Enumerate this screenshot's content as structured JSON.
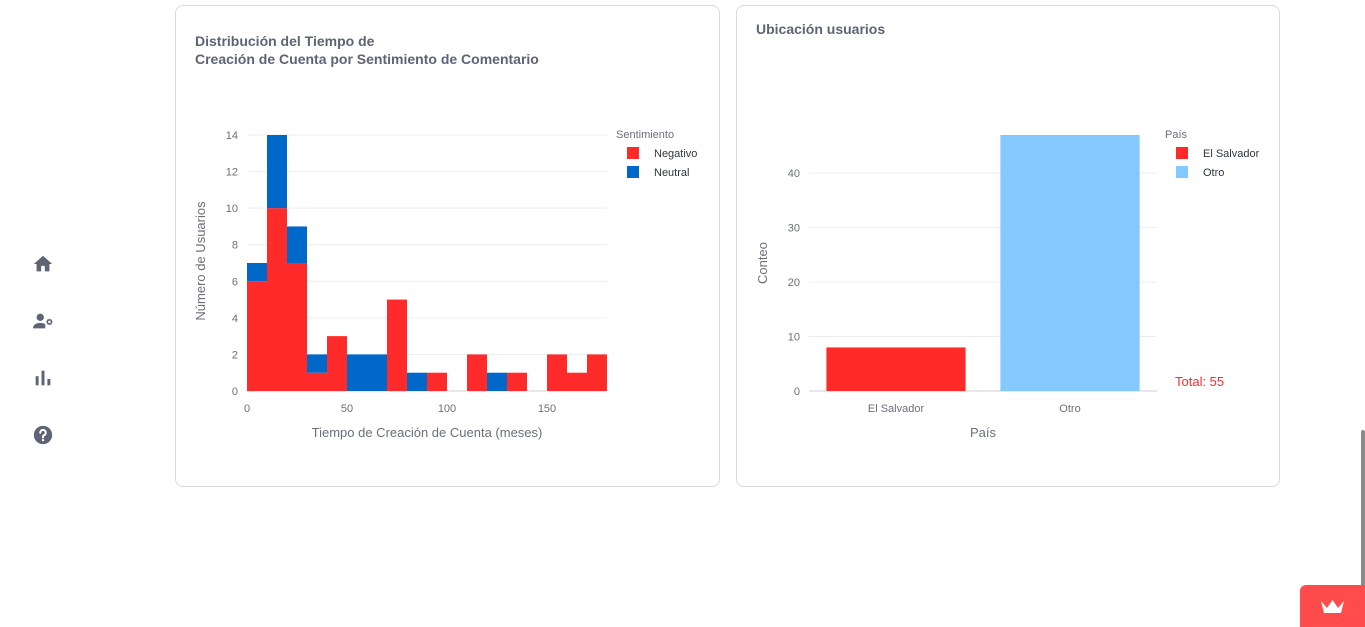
{
  "nav": {
    "items": [
      {
        "icon": "home-icon"
      },
      {
        "icon": "users-settings-icon"
      },
      {
        "icon": "bar-chart-icon"
      },
      {
        "icon": "help-icon"
      }
    ]
  },
  "charts": {
    "left": {
      "title": "Distribución del Tiempo de\nCreación de Cuenta por Sentimiento de Comentario"
    },
    "right": {
      "title": "Ubicación usuarios",
      "total_label": "Total: 55"
    }
  },
  "chart_data": [
    {
      "type": "bar",
      "stacked": true,
      "title": "Distribución del Tiempo de Creación de Cuenta por Sentimiento de Comentario",
      "xlabel": "Tiempo de Creación de Cuenta (meses)",
      "ylabel": "Número de Usuarios",
      "bin_starts": [
        0,
        10,
        20,
        30,
        40,
        50,
        60,
        70,
        80,
        90,
        100,
        110,
        120,
        130,
        140,
        150,
        160,
        170
      ],
      "bin_width": 10,
      "xlim": [
        0,
        180
      ],
      "ylim": [
        0,
        14
      ],
      "xticks": [
        0,
        50,
        100,
        150
      ],
      "yticks": [
        0,
        2,
        4,
        6,
        8,
        10,
        12,
        14
      ],
      "legend_title": "Sentimiento",
      "legend_position": "top-right",
      "grid": true,
      "series": [
        {
          "name": "Negativo",
          "color": "#ff2b2b",
          "values": [
            6,
            10,
            7,
            1,
            3,
            0,
            0,
            5,
            0,
            1,
            0,
            2,
            0,
            1,
            0,
            2,
            1,
            2
          ]
        },
        {
          "name": "Neutral",
          "color": "#0068c9",
          "values": [
            1,
            4,
            2,
            1,
            0,
            2,
            2,
            0,
            1,
            0,
            0,
            0,
            1,
            0,
            0,
            0,
            0,
            0
          ]
        }
      ]
    },
    {
      "type": "bar",
      "title": "Ubicación usuarios",
      "xlabel": "País",
      "ylabel": "Conteo",
      "categories": [
        "El Salvador",
        "Otro"
      ],
      "values": [
        8,
        47
      ],
      "colors": [
        "#ff2b2b",
        "#83c9ff"
      ],
      "ylim": [
        0,
        47
      ],
      "yticks": [
        0,
        10,
        20,
        30,
        40
      ],
      "legend_title": "País",
      "legend_position": "top-right",
      "grid": true,
      "annotation": "Total: 55"
    }
  ]
}
